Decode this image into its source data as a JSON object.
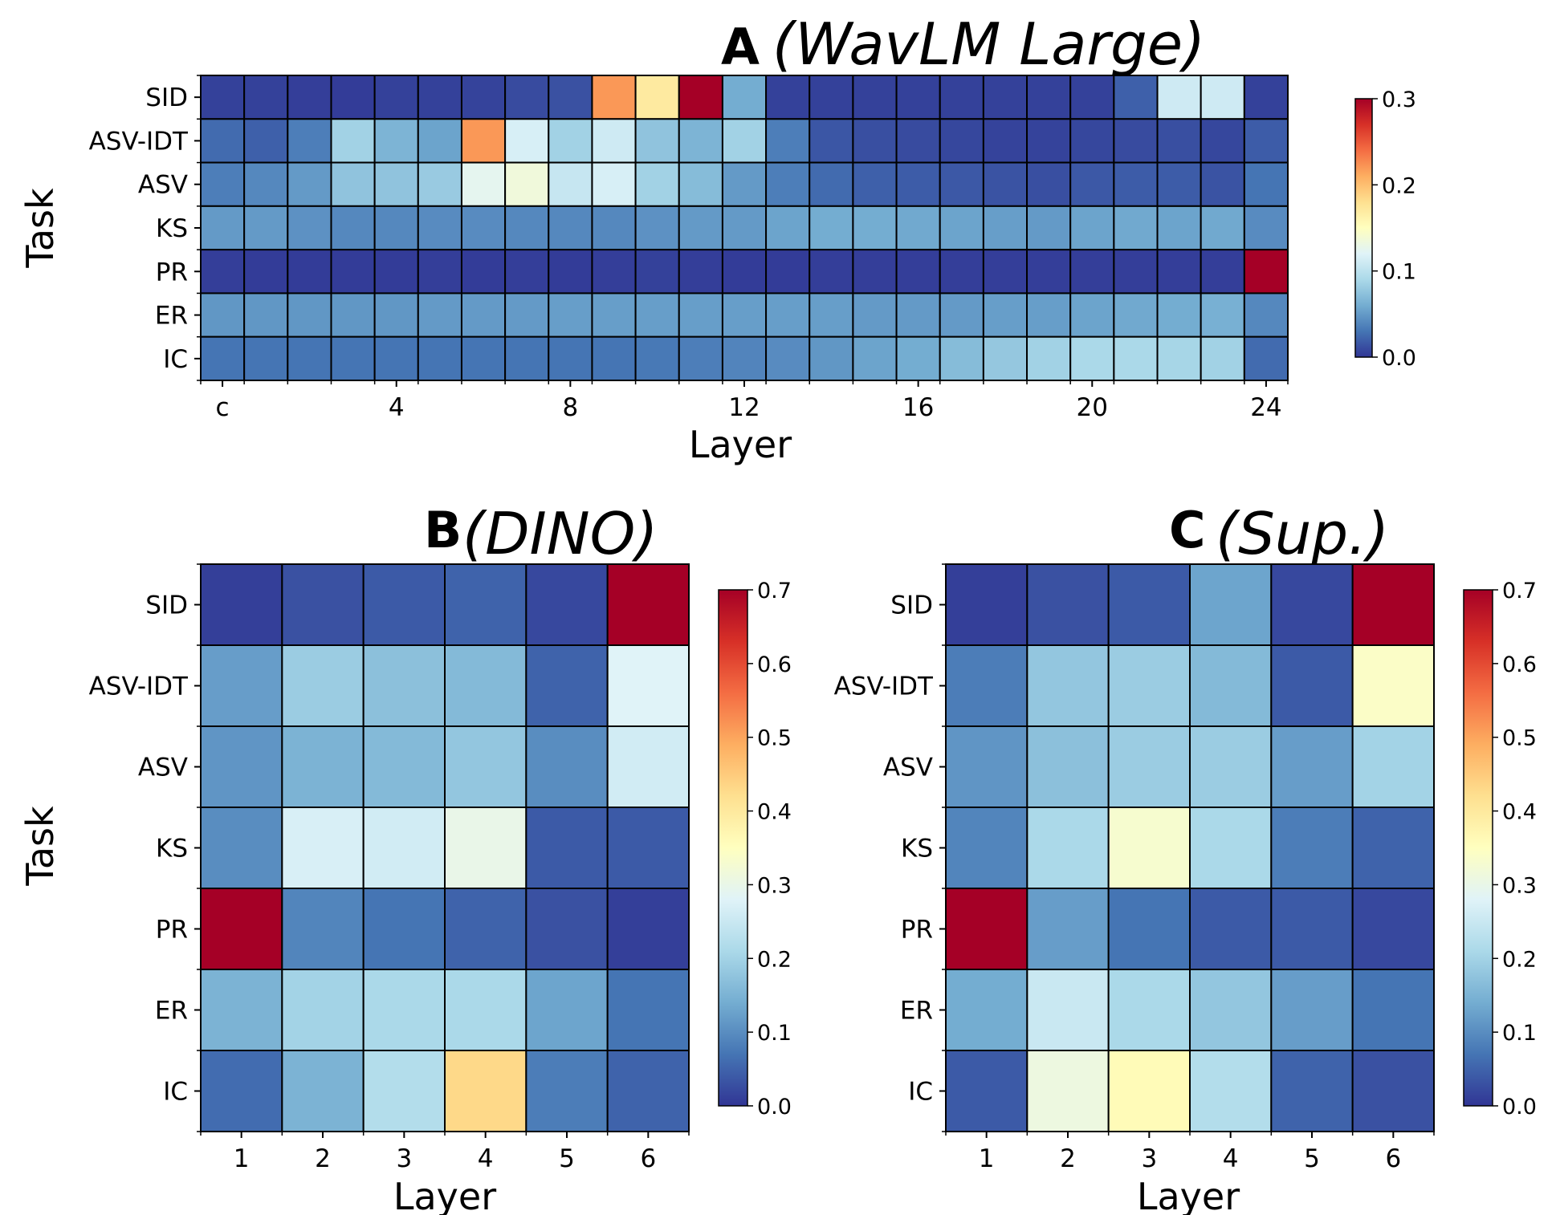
{
  "chart_data": [
    {
      "type": "heatmap",
      "panel_letter": "A",
      "title": "(WavLM Large)",
      "xlabel": "Layer",
      "ylabel": "Task",
      "rows": [
        "SID",
        "ASV-IDT",
        "ASV",
        "KS",
        "PR",
        "ER",
        "IC"
      ],
      "columns": [
        "c",
        "1",
        "2",
        "3",
        "4",
        "5",
        "6",
        "7",
        "8",
        "9",
        "10",
        "11",
        "12",
        "13",
        "14",
        "15",
        "16",
        "17",
        "18",
        "19",
        "20",
        "21",
        "22",
        "23",
        "24"
      ],
      "x_tick_labels": [
        "c",
        "4",
        "8",
        "12",
        "16",
        "20",
        "24"
      ],
      "colorbar": {
        "min": 0.0,
        "max": 0.3,
        "ticks": [
          "0.0",
          "0.1",
          "0.2",
          "0.3"
        ],
        "colormap": "RdYlBu_r"
      },
      "values": [
        [
          0.005,
          0.005,
          0.004,
          0.003,
          0.005,
          0.005,
          0.006,
          0.01,
          0.013,
          0.22,
          0.17,
          0.3,
          0.06,
          0.005,
          0.005,
          0.005,
          0.005,
          0.005,
          0.005,
          0.005,
          0.005,
          0.02,
          0.11,
          0.11,
          0.005
        ],
        [
          0.025,
          0.02,
          0.035,
          0.085,
          0.065,
          0.055,
          0.22,
          0.115,
          0.085,
          0.11,
          0.075,
          0.065,
          0.085,
          0.035,
          0.015,
          0.012,
          0.01,
          0.008,
          0.006,
          0.006,
          0.008,
          0.01,
          0.012,
          0.008,
          0.018
        ],
        [
          0.035,
          0.04,
          0.05,
          0.075,
          0.075,
          0.08,
          0.125,
          0.135,
          0.105,
          0.115,
          0.085,
          0.07,
          0.05,
          0.035,
          0.025,
          0.02,
          0.018,
          0.016,
          0.014,
          0.012,
          0.016,
          0.018,
          0.018,
          0.014,
          0.03
        ],
        [
          0.05,
          0.05,
          0.045,
          0.04,
          0.04,
          0.042,
          0.042,
          0.04,
          0.04,
          0.04,
          0.045,
          0.05,
          0.05,
          0.055,
          0.06,
          0.06,
          0.058,
          0.055,
          0.052,
          0.05,
          0.055,
          0.058,
          0.055,
          0.058,
          0.042
        ],
        [
          0.004,
          0.003,
          0.003,
          0.003,
          0.003,
          0.004,
          0.003,
          0.004,
          0.003,
          0.004,
          0.005,
          0.004,
          0.003,
          0.003,
          0.004,
          0.004,
          0.004,
          0.004,
          0.004,
          0.004,
          0.004,
          0.004,
          0.004,
          0.004,
          0.3
        ],
        [
          0.048,
          0.048,
          0.048,
          0.048,
          0.048,
          0.05,
          0.05,
          0.05,
          0.052,
          0.052,
          0.052,
          0.052,
          0.052,
          0.052,
          0.052,
          0.05,
          0.05,
          0.05,
          0.052,
          0.052,
          0.055,
          0.058,
          0.06,
          0.062,
          0.04
        ],
        [
          0.03,
          0.03,
          0.03,
          0.03,
          0.03,
          0.03,
          0.03,
          0.03,
          0.03,
          0.03,
          0.032,
          0.035,
          0.038,
          0.042,
          0.048,
          0.055,
          0.06,
          0.07,
          0.078,
          0.085,
          0.09,
          0.09,
          0.088,
          0.085,
          0.025
        ]
      ]
    },
    {
      "type": "heatmap",
      "panel_letter": "B",
      "title": "(DINO)",
      "xlabel": "Layer",
      "ylabel": "Task",
      "rows": [
        "SID",
        "ASV-IDT",
        "ASV",
        "KS",
        "PR",
        "ER",
        "IC"
      ],
      "columns": [
        "1",
        "2",
        "3",
        "4",
        "5",
        "6"
      ],
      "x_tick_labels": [
        "1",
        "2",
        "3",
        "4",
        "5",
        "6"
      ],
      "colorbar": {
        "min": 0.0,
        "max": 0.7,
        "ticks": [
          "0.0",
          "0.1",
          "0.2",
          "0.3",
          "0.4",
          "0.5",
          "0.6",
          "0.7"
        ],
        "colormap": "RdYlBu_r"
      },
      "values": [
        [
          0.01,
          0.03,
          0.04,
          0.05,
          0.02,
          0.7
        ],
        [
          0.12,
          0.19,
          0.17,
          0.16,
          0.05,
          0.28
        ],
        [
          0.11,
          0.15,
          0.16,
          0.18,
          0.1,
          0.26
        ],
        [
          0.1,
          0.27,
          0.26,
          0.3,
          0.04,
          0.04
        ],
        [
          0.7,
          0.09,
          0.07,
          0.05,
          0.03,
          0.01
        ],
        [
          0.15,
          0.2,
          0.21,
          0.21,
          0.13,
          0.07
        ],
        [
          0.06,
          0.15,
          0.22,
          0.43,
          0.08,
          0.05
        ]
      ]
    },
    {
      "type": "heatmap",
      "panel_letter": "C",
      "title": "(Sup.)",
      "xlabel": "Layer",
      "ylabel": "",
      "rows": [
        "SID",
        "ASV-IDT",
        "ASV",
        "KS",
        "PR",
        "ER",
        "IC"
      ],
      "columns": [
        "1",
        "2",
        "3",
        "4",
        "5",
        "6"
      ],
      "x_tick_labels": [
        "1",
        "2",
        "3",
        "4",
        "5",
        "6"
      ],
      "colorbar": {
        "min": 0.0,
        "max": 0.7,
        "ticks": [
          "0.0",
          "0.1",
          "0.2",
          "0.3",
          "0.4",
          "0.5",
          "0.6",
          "0.7"
        ],
        "colormap": "RdYlBu_r"
      },
      "values": [
        [
          0.01,
          0.03,
          0.04,
          0.13,
          0.02,
          0.7
        ],
        [
          0.08,
          0.18,
          0.19,
          0.16,
          0.04,
          0.34
        ],
        [
          0.11,
          0.17,
          0.19,
          0.19,
          0.12,
          0.2
        ],
        [
          0.09,
          0.21,
          0.33,
          0.21,
          0.08,
          0.05
        ],
        [
          0.7,
          0.12,
          0.07,
          0.04,
          0.04,
          0.02
        ],
        [
          0.14,
          0.25,
          0.21,
          0.18,
          0.12,
          0.07
        ],
        [
          0.04,
          0.31,
          0.36,
          0.22,
          0.05,
          0.03
        ]
      ]
    }
  ]
}
